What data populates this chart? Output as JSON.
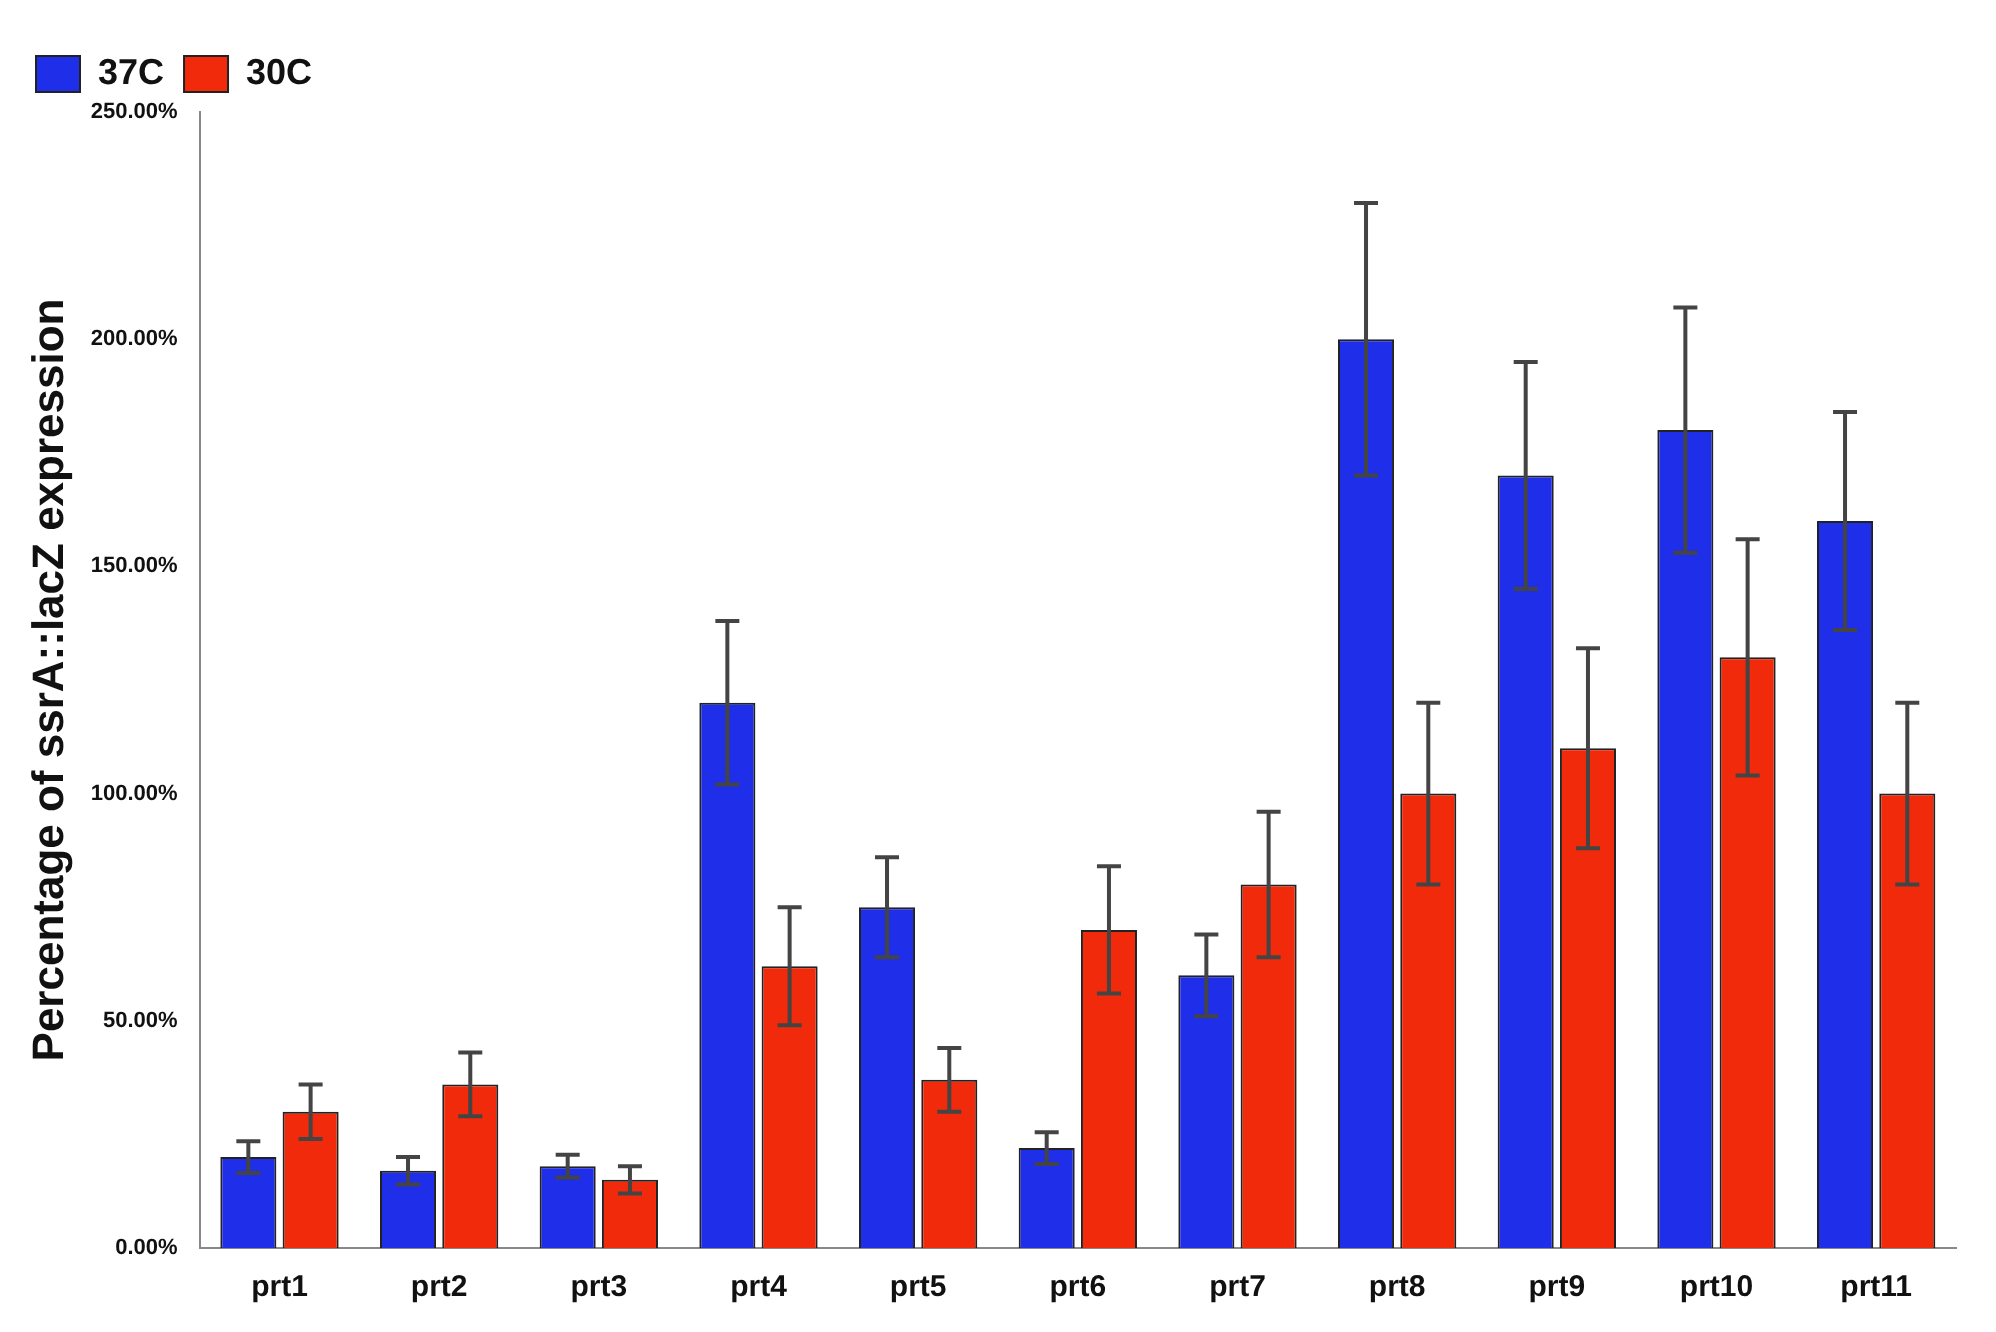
{
  "chart_data": {
    "type": "bar",
    "ylabel": "Percentage of ssrA::lacZ expression",
    "categories": [
      "prt1",
      "prt2",
      "prt3",
      "prt4",
      "prt5",
      "prt6",
      "prt7",
      "prt8",
      "prt9",
      "prt10",
      "prt11"
    ],
    "series": [
      {
        "name": "37C",
        "color": "#1f2ee8",
        "values": [
          20,
          17,
          18,
          120,
          75,
          22,
          60,
          200,
          170,
          180,
          160
        ],
        "errors": [
          3.5,
          3,
          2.5,
          18,
          11,
          3.5,
          9,
          30,
          25,
          27,
          24
        ]
      },
      {
        "name": "30C",
        "color": "#f02a0a",
        "values": [
          30,
          36,
          15,
          62,
          37,
          70,
          80,
          100,
          110,
          130,
          100
        ],
        "errors": [
          6,
          7,
          3,
          13,
          7,
          14,
          16,
          20,
          22,
          26,
          20
        ]
      }
    ],
    "ylim": [
      0,
      250
    ],
    "yticks": [
      {
        "value": 0,
        "label": "0.00%"
      },
      {
        "value": 50,
        "label": "50.00%"
      },
      {
        "value": 100,
        "label": "100.00%"
      },
      {
        "value": 150,
        "label": "150.00%"
      },
      {
        "value": 200,
        "label": "200.00%"
      },
      {
        "value": 250,
        "label": "250.00%"
      }
    ],
    "grid": false,
    "legend": "top left"
  }
}
